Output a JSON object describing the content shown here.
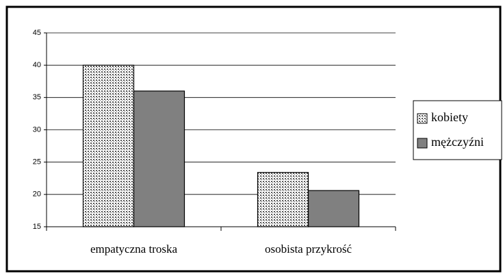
{
  "chart_data": {
    "type": "bar",
    "categories": [
      "empatyczna troska",
      "osobista przykrość"
    ],
    "series": [
      {
        "name": "kobiety",
        "color": "#555555",
        "pattern": "dots",
        "values": [
          40,
          23.4
        ]
      },
      {
        "name": "mężczyźni",
        "color": "#808080",
        "values": [
          36,
          20.6
        ]
      }
    ],
    "ylim": [
      15,
      45
    ],
    "yticks": [
      15,
      20,
      25,
      30,
      35,
      40,
      45
    ],
    "grid": true,
    "legend": "right"
  }
}
